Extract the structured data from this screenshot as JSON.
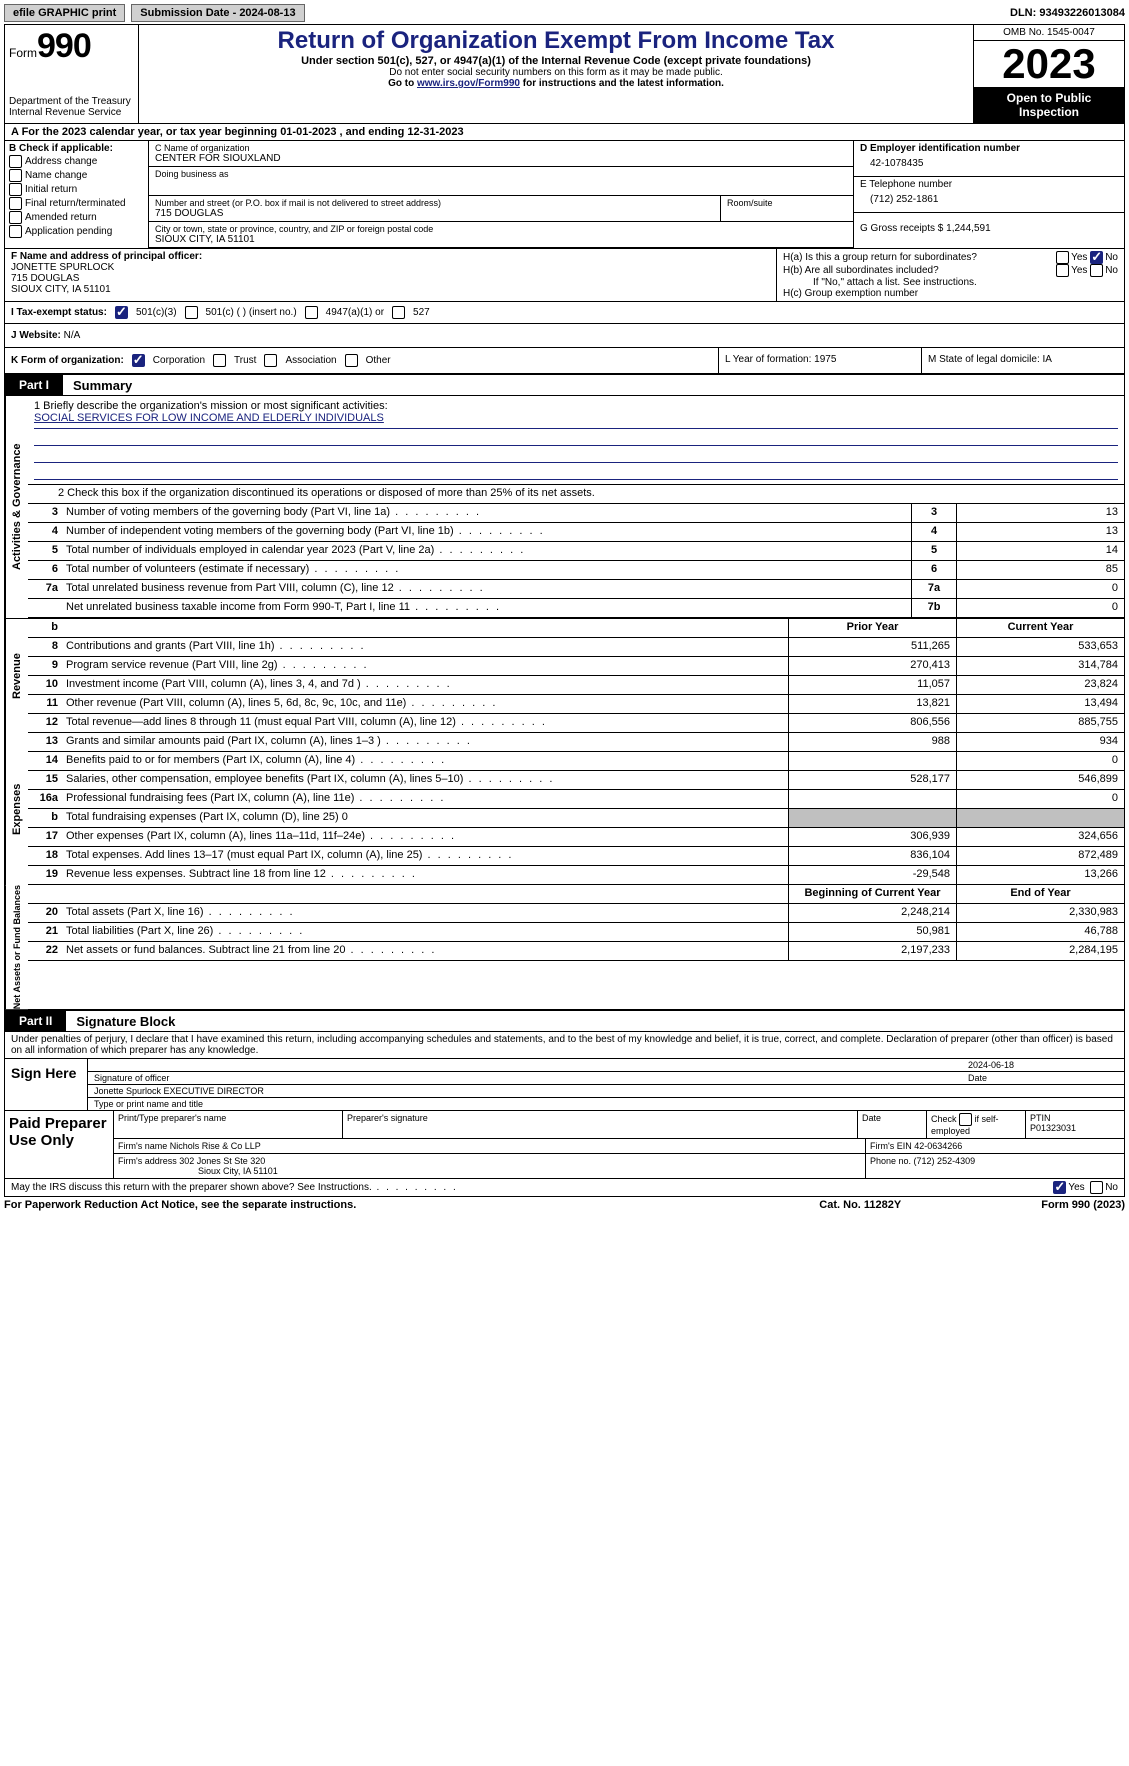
{
  "topbar": {
    "efile": "efile GRAPHIC print",
    "submission_label": "Submission Date - 2024-08-13",
    "dln_label": "DLN: 93493226013084"
  },
  "header": {
    "form_label": "Form",
    "form_num": "990",
    "dept": "Department of the Treasury",
    "irs": "Internal Revenue Service",
    "title": "Return of Organization Exempt From Income Tax",
    "sub": "Under section 501(c), 527, or 4947(a)(1) of the Internal Revenue Code (except private foundations)",
    "warn": "Do not enter social security numbers on this form as it may be made public.",
    "goto_pre": "Go to ",
    "goto_link": "www.irs.gov/Form990",
    "goto_post": " for instructions and the latest information.",
    "omb": "OMB No. 1545-0047",
    "year": "2023",
    "open": "Open to Public Inspection"
  },
  "rowA": "A For the 2023 calendar year, or tax year beginning 01-01-2023    , and ending 12-31-2023",
  "colB": {
    "title": "B Check if applicable:",
    "items": [
      "Address change",
      "Name change",
      "Initial return",
      "Final return/terminated",
      "Amended return",
      "Application pending"
    ]
  },
  "C": {
    "name_lbl": "C Name of organization",
    "name": "CENTER FOR SIOUXLAND",
    "dba_lbl": "Doing business as",
    "addr_lbl": "Number and street (or P.O. box if mail is not delivered to street address)",
    "addr": "715 DOUGLAS",
    "room_lbl": "Room/suite",
    "city_lbl": "City or town, state or province, country, and ZIP or foreign postal code",
    "city": "SIOUX CITY, IA  51101"
  },
  "right": {
    "D_lbl": "D Employer identification number",
    "D": "42-1078435",
    "E_lbl": "E Telephone number",
    "E": "(712) 252-1861",
    "G_lbl": "G Gross receipts $ 1,244,591"
  },
  "F": {
    "lbl": "F  Name and address of principal officer:",
    "l1": "JONETTE SPURLOCK",
    "l2": "715 DOUGLAS",
    "l3": "SIOUX CITY, IA  51101"
  },
  "H": {
    "a": "H(a)  Is this a group return for subordinates?",
    "b": "H(b)  Are all subordinates included?",
    "note": "If \"No,\" attach a list. See instructions.",
    "c": "H(c)  Group exemption number "
  },
  "I": {
    "lbl": "I    Tax-exempt status:",
    "o1": "501(c)(3)",
    "o2": "501(c) (  ) (insert no.)",
    "o3": "4947(a)(1) or",
    "o4": "527"
  },
  "J": {
    "lbl": "J    Website: ",
    "val": "N/A"
  },
  "K": {
    "lbl": "K Form of organization:",
    "o1": "Corporation",
    "o2": "Trust",
    "o3": "Association",
    "o4": "Other"
  },
  "L": {
    "lbl": "L Year of formation: 1975"
  },
  "M": {
    "lbl": "M State of legal domicile: IA"
  },
  "part1": {
    "tab": "Part I",
    "title": "Summary"
  },
  "vtabs": {
    "gov": "Activities & Governance",
    "rev": "Revenue",
    "exp": "Expenses",
    "net": "Net Assets or Fund Balances"
  },
  "mission": {
    "lbl": "1   Briefly describe the organization's mission or most significant activities:",
    "text": "SOCIAL SERVICES FOR LOW INCOME AND ELDERLY INDIVIDUALS"
  },
  "line2": "2   Check this box        if the organization discontinued its operations or disposed of more than 25% of its net assets.",
  "gov_rows": [
    {
      "n": "3",
      "d": "Number of voting members of the governing body (Part VI, line 1a)",
      "bn": "3",
      "v": "13"
    },
    {
      "n": "4",
      "d": "Number of independent voting members of the governing body (Part VI, line 1b)",
      "bn": "4",
      "v": "13"
    },
    {
      "n": "5",
      "d": "Total number of individuals employed in calendar year 2023 (Part V, line 2a)",
      "bn": "5",
      "v": "14"
    },
    {
      "n": "6",
      "d": "Total number of volunteers (estimate if necessary)",
      "bn": "6",
      "v": "85"
    },
    {
      "n": "7a",
      "d": "Total unrelated business revenue from Part VIII, column (C), line 12",
      "bn": "7a",
      "v": "0"
    },
    {
      "n": "",
      "d": "Net unrelated business taxable income from Form 990-T, Part I, line 11",
      "bn": "7b",
      "v": "0"
    }
  ],
  "rev_hdr": {
    "b": "b",
    "py": "Prior Year",
    "cy": "Current Year"
  },
  "rev_rows": [
    {
      "n": "8",
      "d": "Contributions and grants (Part VIII, line 1h)",
      "py": "511,265",
      "cy": "533,653"
    },
    {
      "n": "9",
      "d": "Program service revenue (Part VIII, line 2g)",
      "py": "270,413",
      "cy": "314,784"
    },
    {
      "n": "10",
      "d": "Investment income (Part VIII, column (A), lines 3, 4, and 7d )",
      "py": "11,057",
      "cy": "23,824"
    },
    {
      "n": "11",
      "d": "Other revenue (Part VIII, column (A), lines 5, 6d, 8c, 9c, 10c, and 11e)",
      "py": "13,821",
      "cy": "13,494"
    },
    {
      "n": "12",
      "d": "Total revenue—add lines 8 through 11 (must equal Part VIII, column (A), line 12)",
      "py": "806,556",
      "cy": "885,755"
    }
  ],
  "exp_rows": [
    {
      "n": "13",
      "d": "Grants and similar amounts paid (Part IX, column (A), lines 1–3 )",
      "py": "988",
      "cy": "934"
    },
    {
      "n": "14",
      "d": "Benefits paid to or for members (Part IX, column (A), line 4)",
      "py": "",
      "cy": "0"
    },
    {
      "n": "15",
      "d": "Salaries, other compensation, employee benefits (Part IX, column (A), lines 5–10)",
      "py": "528,177",
      "cy": "546,899"
    },
    {
      "n": "16a",
      "d": "Professional fundraising fees (Part IX, column (A), line 11e)",
      "py": "",
      "cy": "0"
    },
    {
      "n": "b",
      "d": "Total fundraising expenses (Part IX, column (D), line 25) 0",
      "py": "shade",
      "cy": "shade"
    },
    {
      "n": "17",
      "d": "Other expenses (Part IX, column (A), lines 11a–11d, 11f–24e)",
      "py": "306,939",
      "cy": "324,656"
    },
    {
      "n": "18",
      "d": "Total expenses. Add lines 13–17 (must equal Part IX, column (A), line 25)",
      "py": "836,104",
      "cy": "872,489"
    },
    {
      "n": "19",
      "d": "Revenue less expenses. Subtract line 18 from line 12",
      "py": "-29,548",
      "cy": "13,266"
    }
  ],
  "net_hdr": {
    "py": "Beginning of Current Year",
    "cy": "End of Year"
  },
  "net_rows": [
    {
      "n": "20",
      "d": "Total assets (Part X, line 16)",
      "py": "2,248,214",
      "cy": "2,330,983"
    },
    {
      "n": "21",
      "d": "Total liabilities (Part X, line 26)",
      "py": "50,981",
      "cy": "46,788"
    },
    {
      "n": "22",
      "d": "Net assets or fund balances. Subtract line 21 from line 20",
      "py": "2,197,233",
      "cy": "2,284,195"
    }
  ],
  "part2": {
    "tab": "Part II",
    "title": "Signature Block"
  },
  "sig_text": "Under penalties of perjury, I declare that I have examined this return, including accompanying schedules and statements, and to the best of my knowledge and belief, it is true, correct, and complete. Declaration of preparer (other than officer) is based on all information of which preparer has any knowledge.",
  "sign": {
    "here": "Sign Here",
    "date": "2024-06-18",
    "sig_lbl": "Signature of officer",
    "date_lbl": "Date",
    "name": "Jonette Spurlock EXECUTIVE DIRECTOR",
    "name_lbl": "Type or print name and title"
  },
  "prep": {
    "title": "Paid Preparer Use Only",
    "h1": "Print/Type preparer's name",
    "h2": "Preparer's signature",
    "h3": "Date",
    "h4_pre": "Check",
    "h4_post": "if self-employed",
    "h5": "PTIN",
    "ptin": "P01323031",
    "firm_lbl": "Firm's name   ",
    "firm": "Nichols Rise & Co LLP",
    "ein_lbl": "Firm's EIN  ",
    "ein": "42-0634266",
    "addr_lbl": "Firm's address ",
    "addr1": "302 Jones St Ste 320",
    "addr2": "Sioux City, IA  51101",
    "phone_lbl": "Phone no. ",
    "phone": "(712) 252-4309"
  },
  "footer": {
    "q": "May the IRS discuss this return with the preparer shown above? See Instructions.",
    "paperwork": "For Paperwork Reduction Act Notice, see the separate instructions.",
    "cat": "Cat. No. 11282Y",
    "form": "Form 990 (2023)"
  },
  "yn": {
    "yes": "Yes",
    "no": "No"
  }
}
